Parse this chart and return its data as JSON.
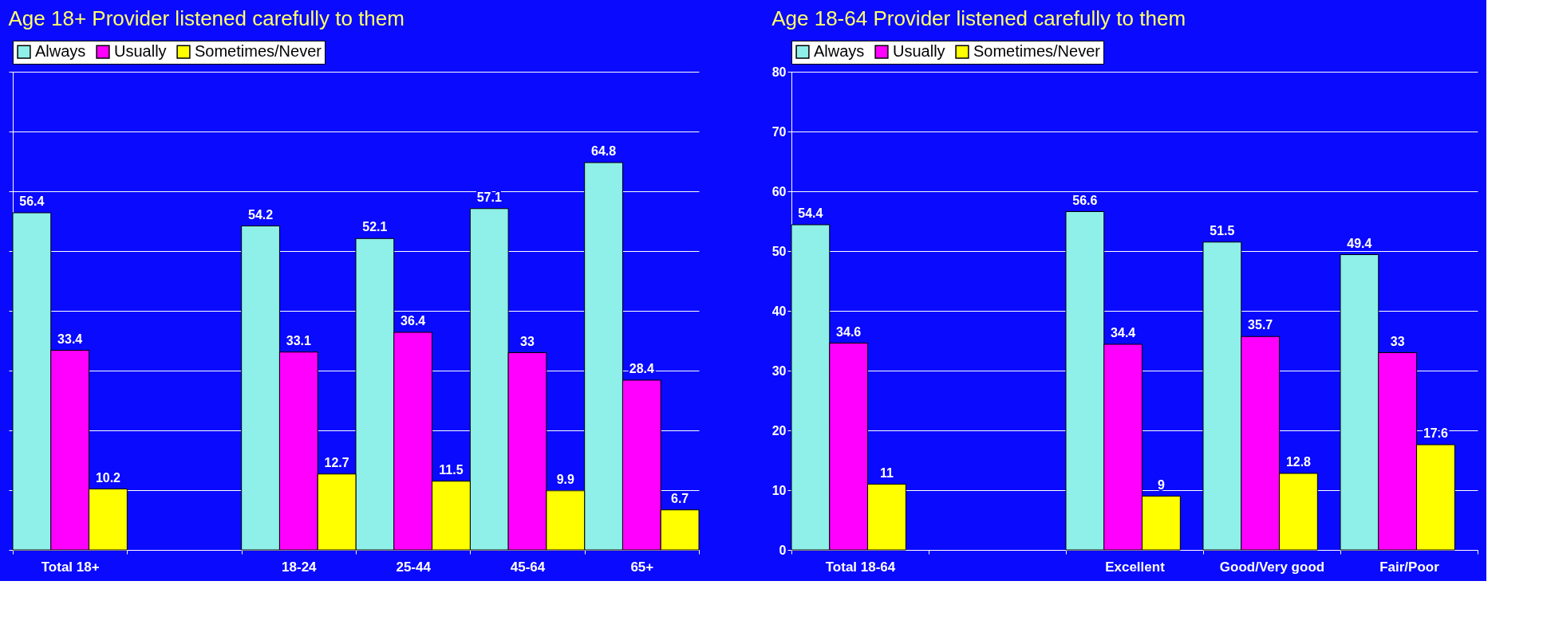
{
  "chart_data": [
    {
      "type": "bar",
      "title": "Age 18+ Provider listened carefully to them",
      "categories": [
        "Total 18+",
        null,
        "18-24",
        "25-44",
        "45-64",
        "65+"
      ],
      "ylim": [
        0,
        80
      ],
      "yticks": [
        {
          "value": 0,
          "label": null
        },
        {
          "value": 10,
          "label": null
        },
        {
          "value": 20,
          "label": null
        },
        {
          "value": 30,
          "label": null
        },
        {
          "value": 40,
          "label": null
        },
        {
          "value": 50,
          "label": null
        },
        {
          "value": 60,
          "label": null
        },
        {
          "value": 70,
          "label": null
        },
        {
          "value": 80,
          "label": null
        }
      ],
      "tick_labels": "x",
      "grid": "y",
      "legend": "top",
      "data_labels": true,
      "series": [
        {
          "name": "Always",
          "color": "#8ef0e8",
          "values": [
            56.4,
            null,
            54.2,
            52.1,
            57.1,
            64.8
          ]
        },
        {
          "name": "Usually",
          "color": "#ff00ff",
          "values": [
            33.4,
            null,
            33.1,
            36.4,
            33,
            28.4
          ]
        },
        {
          "name": "Sometimes/Never",
          "color": "#ffff00",
          "values": [
            10.2,
            null,
            12.7,
            11.5,
            9.9,
            6.7
          ]
        }
      ]
    },
    {
      "type": "bar",
      "title": "Age 18-64 Provider listened carefully to them",
      "categories": [
        "Total 18-64",
        null,
        "Excellent",
        "Good/Very good",
        "Fair/Poor"
      ],
      "ylim": [
        0,
        80
      ],
      "yticks": [
        0,
        10,
        20,
        30,
        40,
        50,
        60,
        70,
        80
      ],
      "grid": "y",
      "legend": "top",
      "data_labels": true,
      "series": [
        {
          "name": "Always",
          "color": "#8ef0e8",
          "values": [
            54.4,
            null,
            56.6,
            51.5,
            49.4
          ]
        },
        {
          "name": "Usually",
          "color": "#ff00ff",
          "values": [
            34.6,
            null,
            34.4,
            35.7,
            33
          ]
        },
        {
          "name": "Sometimes/Never",
          "color": "#ffff00",
          "values": [
            11,
            null,
            9,
            12.8,
            17.6
          ]
        }
      ]
    }
  ]
}
